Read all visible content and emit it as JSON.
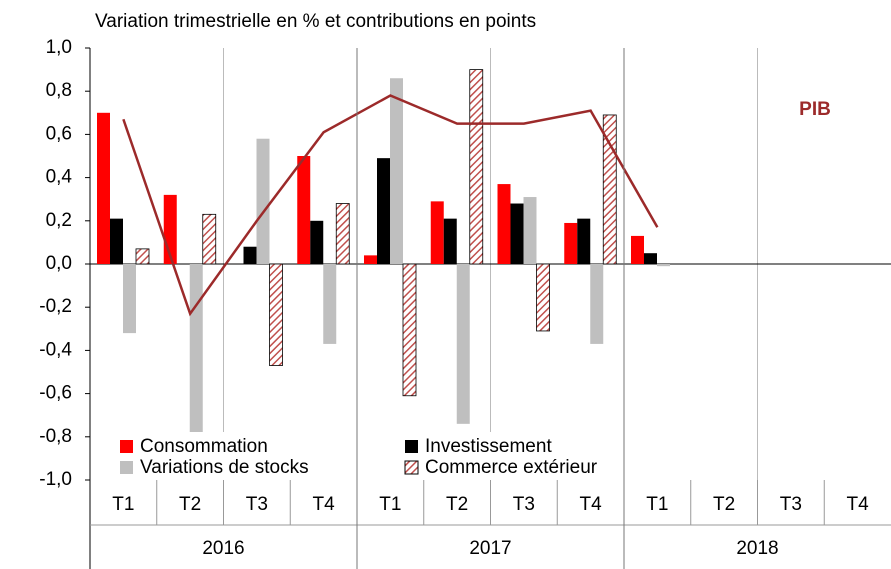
{
  "chart_data": {
    "type": "bar",
    "title": "Variation trimestrielle en % et contributions en points",
    "categories": [
      "T1",
      "T2",
      "T3",
      "T4",
      "T1",
      "T2",
      "T3",
      "T4",
      "T1",
      "T2",
      "T3",
      "T4"
    ],
    "x_groups": [
      "2016",
      "2017",
      "2018"
    ],
    "series": [
      {
        "name": "Consommation",
        "color": "#ff0000",
        "values": [
          0.7,
          0.32,
          0,
          0.5,
          0.04,
          0.29,
          0.37,
          0.19,
          0.13,
          null,
          null,
          null
        ]
      },
      {
        "name": "Investissement",
        "color": "#000000",
        "values": [
          0.21,
          0,
          0.08,
          0.2,
          0.49,
          0.21,
          0.28,
          0.21,
          0.05,
          null,
          null,
          null
        ]
      },
      {
        "name": "Variations de stocks",
        "color": "#bfbfbf",
        "values": [
          -0.32,
          -0.78,
          0.58,
          -0.37,
          0.86,
          -0.74,
          0.31,
          -0.37,
          -0.01,
          null,
          null,
          null
        ]
      },
      {
        "name": "Commerce extérieur",
        "color": "#c0504d",
        "hatch": true,
        "values": [
          0.07,
          0.23,
          -0.47,
          0.28,
          -0.61,
          0.9,
          -0.31,
          0.69,
          0.0,
          null,
          null,
          null
        ]
      },
      {
        "name": "PIB",
        "type": "line",
        "color": "#9c2a2a",
        "values": [
          0.67,
          -0.23,
          0.2,
          0.61,
          0.78,
          0.65,
          0.65,
          0.71,
          0.17,
          null,
          null,
          null
        ]
      }
    ],
    "ylim": [
      -1.0,
      1.0
    ],
    "yticks": [
      {
        "value": 1.0,
        "label": "1,0"
      },
      {
        "value": 0.8,
        "label": "0,8"
      },
      {
        "value": 0.6,
        "label": "0,6"
      },
      {
        "value": 0.4,
        "label": "0,4"
      },
      {
        "value": 0.2,
        "label": "0,2"
      },
      {
        "value": 0.0,
        "label": "0,0"
      },
      {
        "value": -0.2,
        "label": "-0,2"
      },
      {
        "value": -0.4,
        "label": "-0,4"
      },
      {
        "value": -0.6,
        "label": "-0,6"
      },
      {
        "value": -0.8,
        "label": "-0,8"
      },
      {
        "value": -1.0,
        "label": "-1,0"
      }
    ],
    "legend": "lower left"
  }
}
